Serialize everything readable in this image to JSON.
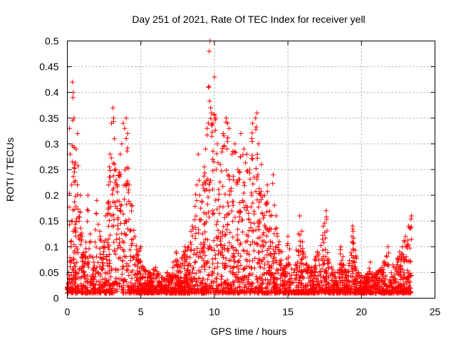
{
  "chart_data": {
    "type": "scatter",
    "title": "Day 251 of 2021, Rate Of TEC Index for receiver yell",
    "xlabel": "GPS time / hours",
    "ylabel": "ROTI / TECUs",
    "xlim": [
      0,
      25
    ],
    "ylim": [
      0,
      0.5
    ],
    "grid": true,
    "marker": "+",
    "color": "#ff0000",
    "xticks": [
      {
        "value": 0,
        "label": "0"
      },
      {
        "value": 5,
        "label": "5"
      },
      {
        "value": 10,
        "label": "10"
      },
      {
        "value": 15,
        "label": "15"
      },
      {
        "value": 20,
        "label": "20"
      },
      {
        "value": 25,
        "label": "25"
      }
    ],
    "yticks": [
      {
        "value": 0,
        "label": "0"
      },
      {
        "value": 0.05,
        "label": "0.05"
      },
      {
        "value": 0.1,
        "label": "0.1"
      },
      {
        "value": 0.15,
        "label": "0.15"
      },
      {
        "value": 0.2,
        "label": "0.2"
      },
      {
        "value": 0.25,
        "label": "0.25"
      },
      {
        "value": 0.3,
        "label": "0.3"
      },
      {
        "value": 0.35,
        "label": "0.35"
      },
      {
        "value": 0.4,
        "label": "0.4"
      },
      {
        "value": 0.45,
        "label": "0.45"
      },
      {
        "value": 0.5,
        "label": "0.5"
      }
    ],
    "series": [
      {
        "name": "ROTI",
        "points": [
          [
            0.05,
            0.02
          ],
          [
            0.1,
            0.05
          ],
          [
            0.15,
            0.33
          ],
          [
            0.2,
            0.28
          ],
          [
            0.25,
            0.1
          ],
          [
            0.3,
            0.22
          ],
          [
            0.35,
            0.42
          ],
          [
            0.38,
            0.39
          ],
          [
            0.4,
            0.4
          ],
          [
            0.45,
            0.35
          ],
          [
            0.5,
            0.26
          ],
          [
            0.6,
            0.29
          ],
          [
            0.7,
            0.32
          ],
          [
            0.8,
            0.15
          ],
          [
            0.9,
            0.2
          ],
          [
            1.0,
            0.12
          ],
          [
            1.2,
            0.08
          ],
          [
            1.4,
            0.2
          ],
          [
            1.6,
            0.11
          ],
          [
            1.8,
            0.07
          ],
          [
            2.0,
            0.19
          ],
          [
            2.2,
            0.13
          ],
          [
            2.4,
            0.1
          ],
          [
            2.6,
            0.16
          ],
          [
            2.8,
            0.22
          ],
          [
            2.9,
            0.28
          ],
          [
            3.0,
            0.34
          ],
          [
            3.1,
            0.37
          ],
          [
            3.15,
            0.35
          ],
          [
            3.2,
            0.31
          ],
          [
            3.3,
            0.25
          ],
          [
            3.4,
            0.22
          ],
          [
            3.6,
            0.28
          ],
          [
            3.7,
            0.3
          ],
          [
            3.8,
            0.34
          ],
          [
            3.9,
            0.33
          ],
          [
            4.0,
            0.35
          ],
          [
            4.1,
            0.32
          ],
          [
            4.2,
            0.22
          ],
          [
            4.4,
            0.18
          ],
          [
            4.6,
            0.12
          ],
          [
            4.8,
            0.09
          ],
          [
            5.0,
            0.1
          ],
          [
            5.2,
            0.06
          ],
          [
            5.6,
            0.05
          ],
          [
            6.0,
            0.06
          ],
          [
            6.4,
            0.04
          ],
          [
            6.8,
            0.05
          ],
          [
            7.2,
            0.07
          ],
          [
            7.4,
            0.09
          ],
          [
            7.6,
            0.06
          ],
          [
            8.0,
            0.1
          ],
          [
            8.4,
            0.13
          ],
          [
            8.8,
            0.22
          ],
          [
            8.9,
            0.28
          ],
          [
            9.0,
            0.2
          ],
          [
            9.2,
            0.22
          ],
          [
            9.4,
            0.29
          ],
          [
            9.5,
            0.33
          ],
          [
            9.6,
            0.41
          ],
          [
            9.65,
            0.48
          ],
          [
            9.7,
            0.5
          ],
          [
            9.75,
            0.37
          ],
          [
            9.8,
            0.36
          ],
          [
            9.9,
            0.34
          ],
          [
            10.0,
            0.43
          ],
          [
            10.1,
            0.35
          ],
          [
            10.2,
            0.3
          ],
          [
            10.4,
            0.26
          ],
          [
            10.6,
            0.32
          ],
          [
            10.8,
            0.35
          ],
          [
            10.9,
            0.34
          ],
          [
            11.0,
            0.33
          ],
          [
            11.2,
            0.28
          ],
          [
            11.4,
            0.3
          ],
          [
            11.6,
            0.25
          ],
          [
            11.8,
            0.32
          ],
          [
            12.0,
            0.29
          ],
          [
            12.2,
            0.28
          ],
          [
            12.4,
            0.25
          ],
          [
            12.6,
            0.34
          ],
          [
            12.8,
            0.35
          ],
          [
            12.9,
            0.36
          ],
          [
            13.0,
            0.3
          ],
          [
            13.2,
            0.26
          ],
          [
            13.4,
            0.2
          ],
          [
            13.6,
            0.22
          ],
          [
            13.8,
            0.16
          ],
          [
            14.0,
            0.24
          ],
          [
            14.2,
            0.16
          ],
          [
            14.4,
            0.11
          ],
          [
            14.6,
            0.09
          ],
          [
            14.8,
            0.06
          ],
          [
            15.0,
            0.12
          ],
          [
            15.4,
            0.05
          ],
          [
            15.8,
            0.16
          ],
          [
            16.2,
            0.08
          ],
          [
            16.6,
            0.06
          ],
          [
            17.0,
            0.09
          ],
          [
            17.4,
            0.14
          ],
          [
            17.6,
            0.17
          ],
          [
            17.8,
            0.07
          ],
          [
            18.2,
            0.05
          ],
          [
            18.6,
            0.1
          ],
          [
            19.0,
            0.05
          ],
          [
            19.4,
            0.14
          ],
          [
            19.8,
            0.05
          ],
          [
            20.2,
            0.04
          ],
          [
            20.6,
            0.07
          ],
          [
            21.0,
            0.05
          ],
          [
            21.4,
            0.06
          ],
          [
            21.8,
            0.1
          ],
          [
            22.2,
            0.06
          ],
          [
            22.6,
            0.09
          ],
          [
            23.0,
            0.12
          ],
          [
            23.2,
            0.14
          ],
          [
            23.4,
            0.16
          ]
        ]
      }
    ]
  }
}
